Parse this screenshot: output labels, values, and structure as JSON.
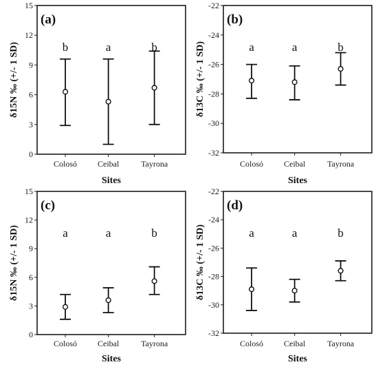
{
  "chart_data": [
    {
      "type": "errorbar",
      "panel_label": "(a)",
      "ylabel": "δ15N ‰ (+/- 1 SD)",
      "xlabel": "Sites",
      "categories": [
        "Colosó",
        "Ceibal",
        "Tayrona"
      ],
      "ylim": [
        0,
        15
      ],
      "yticks": [
        0,
        3,
        6,
        9,
        12,
        15
      ],
      "mean": [
        6.3,
        5.3,
        6.7
      ],
      "sd_low": [
        2.9,
        1.0,
        3.0
      ],
      "sd_high": [
        9.6,
        9.6,
        10.4
      ],
      "letters": [
        "b",
        "a",
        "b"
      ]
    },
    {
      "type": "errorbar",
      "panel_label": "(b)",
      "ylabel": "δ13C ‰ (+/- 1 SD)",
      "xlabel": "Sites",
      "categories": [
        "Colosó",
        "Ceibal",
        "Tayrona"
      ],
      "ylim": [
        -32,
        -22
      ],
      "yticks": [
        -32,
        -30,
        -28,
        -26,
        -24,
        -22
      ],
      "mean": [
        -27.1,
        -27.2,
        -26.3
      ],
      "sd_low": [
        -28.3,
        -28.4,
        -27.4
      ],
      "sd_high": [
        -26.0,
        -26.1,
        -25.2
      ],
      "letters": [
        "a",
        "a",
        "b"
      ]
    },
    {
      "type": "errorbar",
      "panel_label": "(c)",
      "ylabel": "δ15N ‰ (+/- 1 SD)",
      "xlabel": "Sites",
      "categories": [
        "Colosó",
        "Ceibal",
        "Tayrona"
      ],
      "ylim": [
        0,
        15
      ],
      "yticks": [
        0,
        3,
        6,
        9,
        12,
        15
      ],
      "mean": [
        2.9,
        3.6,
        5.6
      ],
      "sd_low": [
        1.6,
        2.3,
        4.2
      ],
      "sd_high": [
        4.2,
        4.9,
        7.1
      ],
      "letters": [
        "a",
        "a",
        "b"
      ]
    },
    {
      "type": "errorbar",
      "panel_label": "(d)",
      "ylabel": "δ13C ‰ (+/- 1 SD)",
      "xlabel": "Sites",
      "categories": [
        "Colosó",
        "Ceibal",
        "Tayrona"
      ],
      "ylim": [
        -32,
        -22
      ],
      "yticks": [
        -32,
        -30,
        -28,
        -26,
        -24,
        -22
      ],
      "mean": [
        -28.9,
        -29.0,
        -27.6
      ],
      "sd_low": [
        -30.4,
        -29.8,
        -28.3
      ],
      "sd_high": [
        -27.4,
        -28.2,
        -26.9
      ],
      "letters": [
        "a",
        "a",
        "b"
      ]
    }
  ]
}
